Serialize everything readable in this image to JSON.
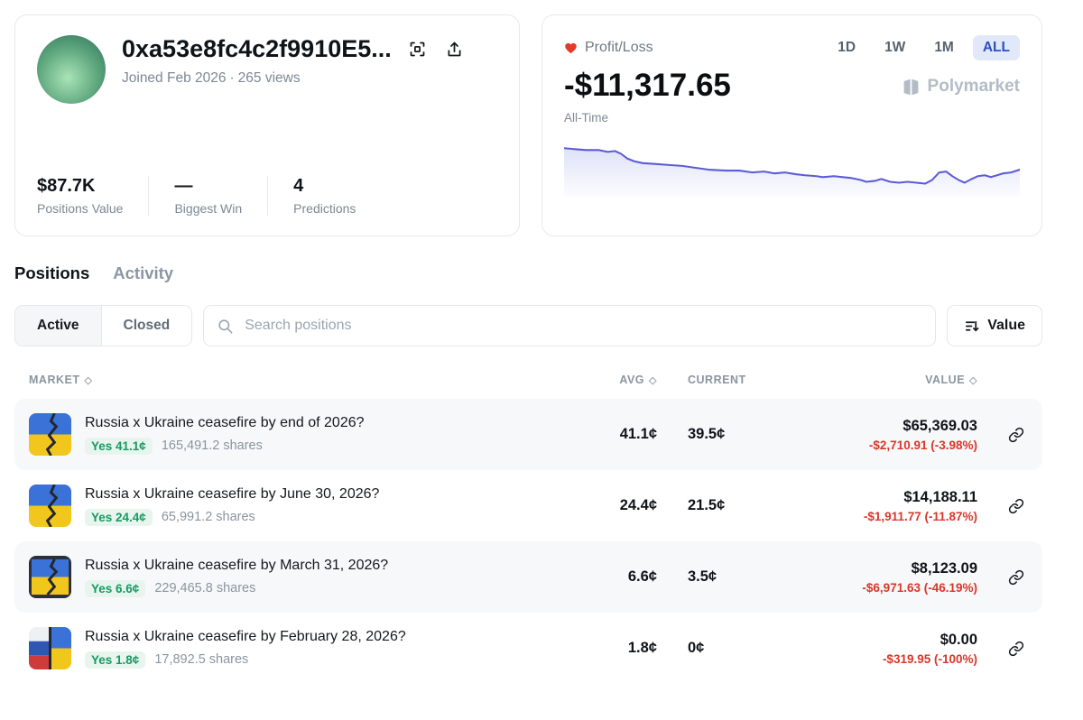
{
  "colors": {
    "accent_blue": "#2c4fc0",
    "accent_blue_bg": "#e1e8fa",
    "loss_red": "#d9372a",
    "yes_green": "#169a62",
    "chart_line": "#5d5bd5",
    "row_alt_bg": "#f7f8f9"
  },
  "profile": {
    "address": "0xa53e8fc4c2f9910E5...",
    "joined": "Joined Feb 2026",
    "separator": "·",
    "views": "265 views",
    "stats": [
      {
        "value": "$87.7K",
        "label": "Positions Value"
      },
      {
        "value": "—",
        "label": "Biggest Win"
      },
      {
        "value": "4",
        "label": "Predictions"
      }
    ]
  },
  "pnl": {
    "title": "Profit/Loss",
    "ranges": [
      "1D",
      "1W",
      "1M",
      "ALL"
    ],
    "active_range": "ALL",
    "value": "-$11,317.65",
    "period_label": "All-Time",
    "watermark": "Polymarket"
  },
  "tabs": [
    {
      "label": "Positions",
      "active": true
    },
    {
      "label": "Activity",
      "active": false
    }
  ],
  "filters": {
    "toggle": [
      "Active",
      "Closed"
    ],
    "active_toggle": "Active",
    "search_placeholder": "Search positions",
    "sort_label": "Value"
  },
  "table": {
    "headers": {
      "market": "MARKET",
      "avg": "AVG",
      "current": "CURRENT",
      "value": "VALUE"
    },
    "rows": [
      {
        "title": "Russia x Ukraine ceasefire by end of 2026?",
        "side": "Yes 41.1¢",
        "shares": "165,491.2 shares",
        "avg": "41.1¢",
        "current": "39.5¢",
        "value": "$65,369.03",
        "change": "-$2,710.91 (-3.98%)"
      },
      {
        "title": "Russia x Ukraine ceasefire by June 30, 2026?",
        "side": "Yes 24.4¢",
        "shares": "65,991.2 shares",
        "avg": "24.4¢",
        "current": "21.5¢",
        "value": "$14,188.11",
        "change": "-$1,911.77 (-11.87%)"
      },
      {
        "title": "Russia x Ukraine ceasefire by March 31, 2026?",
        "side": "Yes 6.6¢",
        "shares": "229,465.8 shares",
        "avg": "6.6¢",
        "current": "3.5¢",
        "value": "$8,123.09",
        "change": "-$6,971.63 (-46.19%)"
      },
      {
        "title": "Russia x Ukraine ceasefire by February 28, 2026?",
        "side": "Yes 1.8¢",
        "shares": "17,892.5 shares",
        "avg": "1.8¢",
        "current": "0¢",
        "value": "$0.00",
        "change": "-$319.95 (-100%)"
      }
    ]
  },
  "chart_data": {
    "type": "line",
    "title": "Profit/Loss",
    "period": "All-Time",
    "end_value_label": "-$11,317.65",
    "line_color": "#5d5bd5",
    "x_range": [
      0,
      520
    ],
    "y_range": [
      0,
      60
    ],
    "grid": false,
    "legend": "none",
    "points": [
      [
        0,
        8
      ],
      [
        12,
        9
      ],
      [
        25,
        10
      ],
      [
        40,
        10
      ],
      [
        50,
        12
      ],
      [
        58,
        11
      ],
      [
        65,
        14
      ],
      [
        72,
        19
      ],
      [
        80,
        22
      ],
      [
        90,
        24
      ],
      [
        105,
        25
      ],
      [
        120,
        26
      ],
      [
        135,
        27
      ],
      [
        150,
        29
      ],
      [
        165,
        31
      ],
      [
        185,
        32
      ],
      [
        200,
        32
      ],
      [
        215,
        34
      ],
      [
        228,
        33
      ],
      [
        240,
        35
      ],
      [
        252,
        34
      ],
      [
        265,
        36
      ],
      [
        275,
        37
      ],
      [
        288,
        38
      ],
      [
        295,
        39
      ],
      [
        308,
        38
      ],
      [
        318,
        39
      ],
      [
        328,
        40
      ],
      [
        338,
        42
      ],
      [
        345,
        44
      ],
      [
        355,
        43
      ],
      [
        362,
        41
      ],
      [
        372,
        44
      ],
      [
        382,
        45
      ],
      [
        392,
        44
      ],
      [
        402,
        45
      ],
      [
        412,
        46
      ],
      [
        420,
        42
      ],
      [
        428,
        34
      ],
      [
        436,
        33
      ],
      [
        443,
        38
      ],
      [
        450,
        42
      ],
      [
        457,
        45
      ],
      [
        465,
        41
      ],
      [
        472,
        38
      ],
      [
        480,
        37
      ],
      [
        487,
        39
      ],
      [
        494,
        37
      ],
      [
        501,
        35
      ],
      [
        510,
        34
      ],
      [
        520,
        31
      ]
    ]
  }
}
